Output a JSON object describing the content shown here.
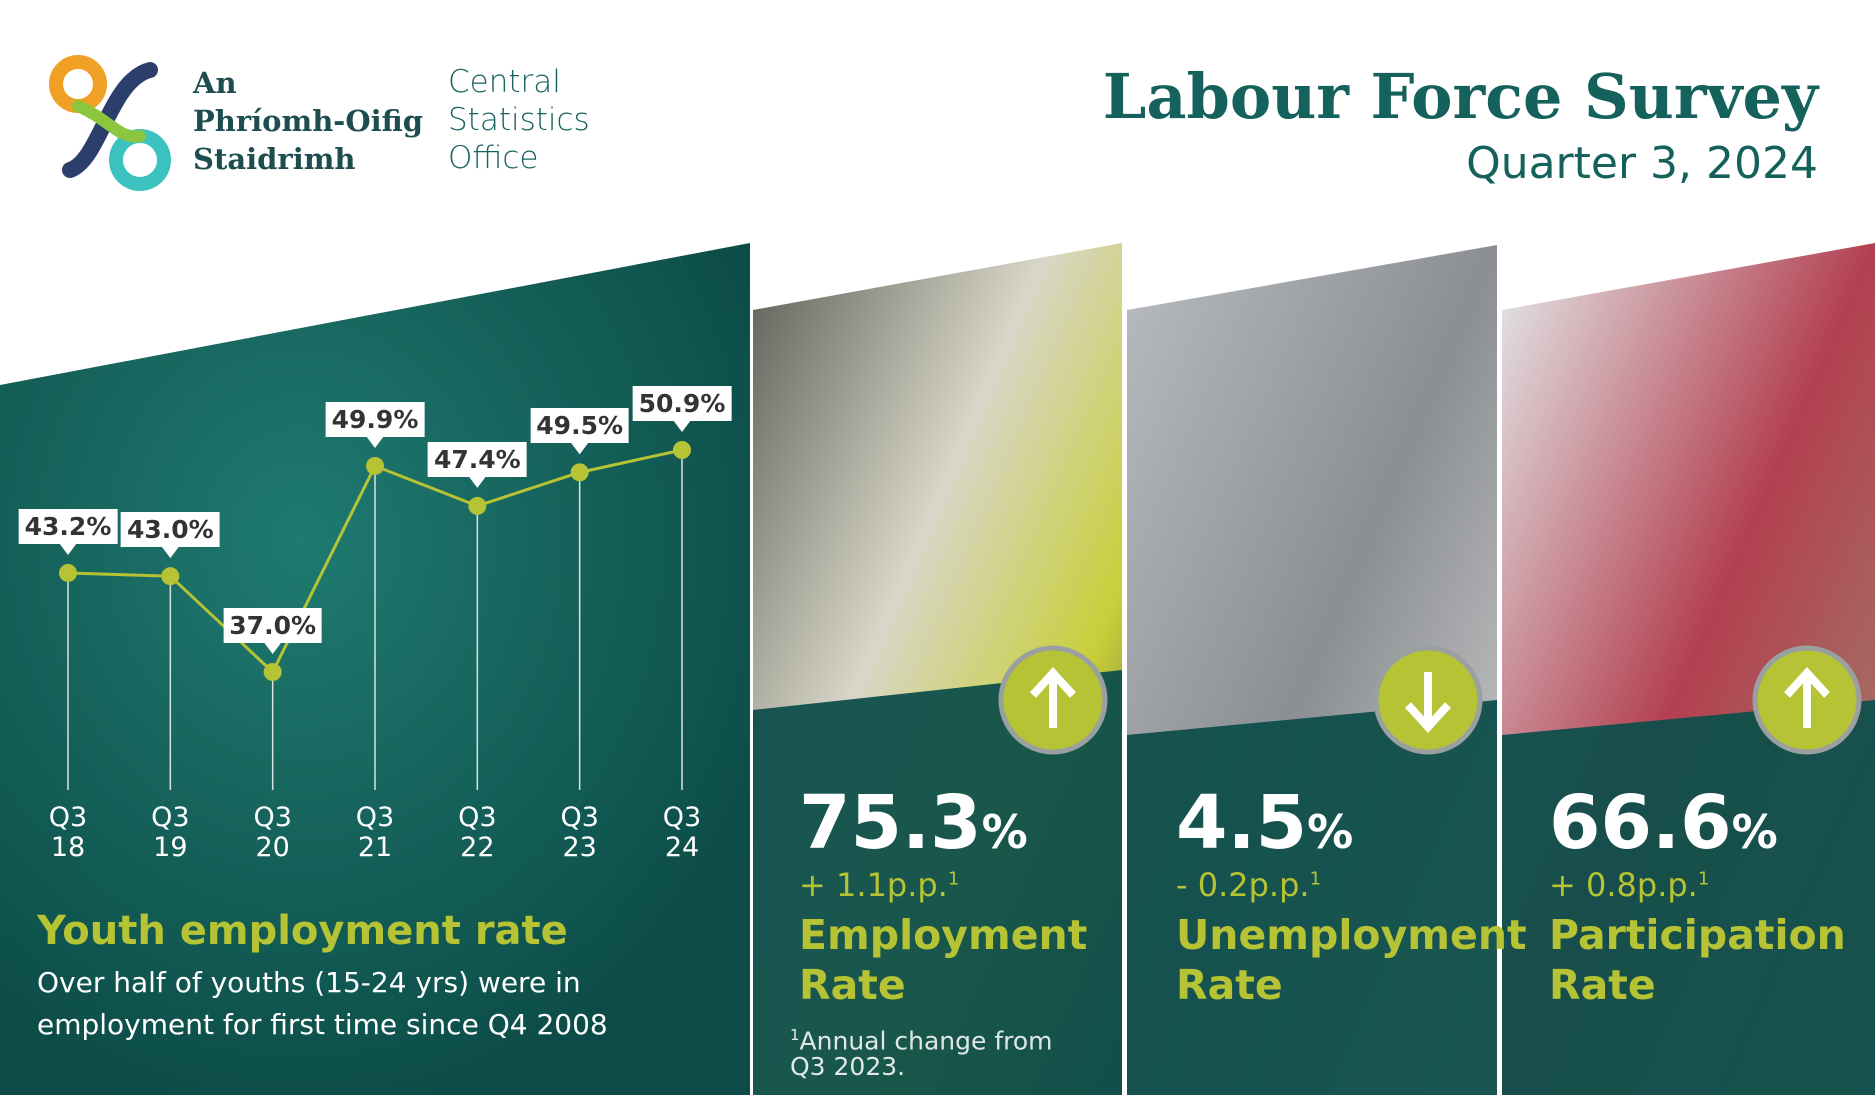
{
  "header": {
    "logo_irish": [
      "An",
      "Phríomh-Oifig",
      "Staidrimh"
    ],
    "logo_english": [
      "Central",
      "Statistics",
      "Office"
    ],
    "title": "Labour Force Survey",
    "subtitle": "Quarter 3, 2024"
  },
  "chart_data": {
    "type": "line",
    "title": "Youth employment rate",
    "subtitle": "Over half of youths (15-24 yrs) were in employment for first time since Q4 2008",
    "categories": [
      "Q3 18",
      "Q3 19",
      "Q3 20",
      "Q3 21",
      "Q3 22",
      "Q3 23",
      "Q3 24"
    ],
    "values": [
      43.2,
      43.0,
      37.0,
      49.9,
      47.4,
      49.5,
      50.9
    ],
    "value_labels": [
      "43.2%",
      "43.0%",
      "37.0%",
      "49.9%",
      "47.4%",
      "49.5%",
      "50.9%"
    ],
    "color": "#b5c334"
  },
  "stats": [
    {
      "value": "75.3",
      "unit": "%",
      "change": "+ 1.1p.p.",
      "note_ref": "1",
      "label": "Employment Rate"
    },
    {
      "value": "4.5",
      "unit": "%",
      "change": "- 0.2p.p.",
      "note_ref": "1",
      "label": "Unemployment Rate"
    },
    {
      "value": "66.6",
      "unit": "%",
      "change": "+ 0.8p.p.",
      "note_ref": "1",
      "label": "Participation Rate"
    }
  ],
  "footnote": {
    "ref": "1",
    "text": "Annual change from Q3 2023."
  }
}
